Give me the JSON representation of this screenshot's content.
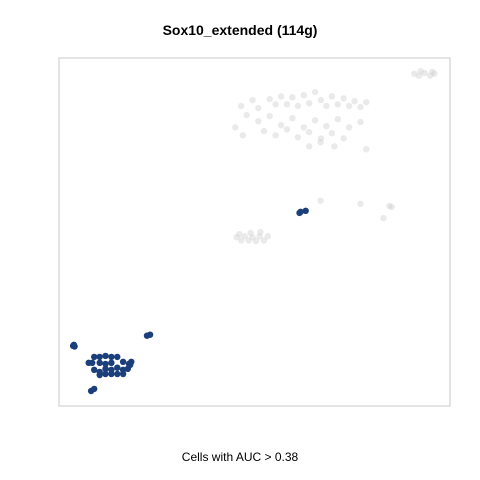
{
  "chart_data": {
    "type": "scatter",
    "title": "Sox10_extended (114g)",
    "xlabel": "Cells with AUC > 0.38",
    "ylabel": "",
    "xlim": [
      0,
      100
    ],
    "ylim": [
      0,
      100
    ],
    "grid": false,
    "axis_ticks": false,
    "colors": {
      "highlighted": "#1b3f7a",
      "background": "#d0d0d0",
      "frame": "#c8c8c8"
    },
    "series": [
      {
        "points": [
          [
            3.6,
            17.3
          ],
          [
            4.0,
            17.1
          ],
          [
            3.8,
            17.6
          ],
          [
            7.6,
            12.4
          ],
          [
            9.0,
            14.1
          ],
          [
            8.5,
            12.4
          ],
          [
            10.4,
            14.1
          ],
          [
            11.9,
            14.4
          ],
          [
            10.4,
            12.4
          ],
          [
            11.9,
            12.1
          ],
          [
            13.4,
            14.1
          ],
          [
            14.9,
            14.1
          ],
          [
            16.4,
            12.7
          ],
          [
            17.9,
            12.1
          ],
          [
            13.4,
            12.4
          ],
          [
            9.0,
            10.4
          ],
          [
            10.4,
            9.8
          ],
          [
            11.9,
            10.7
          ],
          [
            13.4,
            10.4
          ],
          [
            14.9,
            11.0
          ],
          [
            16.4,
            10.4
          ],
          [
            17.6,
            10.7
          ],
          [
            10.4,
            8.9
          ],
          [
            11.9,
            9.2
          ],
          [
            13.4,
            9.2
          ],
          [
            14.9,
            9.2
          ],
          [
            16.4,
            9.2
          ],
          [
            18.2,
            11.8
          ],
          [
            18.5,
            12.7
          ],
          [
            8.2,
            4.3
          ],
          [
            9.0,
            4.9
          ],
          [
            22.5,
            20.2
          ],
          [
            23.3,
            20.5
          ],
          [
            61.5,
            55.5
          ],
          [
            63.1,
            56.1
          ],
          [
            61.8,
            55.8
          ]
        ]
      },
      {
        "points": [
          [
            46.6,
            86.2
          ],
          [
            49.5,
            87.9
          ],
          [
            51.0,
            85.6
          ],
          [
            53.9,
            88.2
          ],
          [
            55.4,
            86.7
          ],
          [
            56.8,
            89.0
          ],
          [
            58.3,
            86.7
          ],
          [
            59.7,
            88.7
          ],
          [
            61.1,
            86.2
          ],
          [
            62.6,
            89.3
          ],
          [
            64.0,
            87.0
          ],
          [
            65.5,
            90.2
          ],
          [
            67.0,
            87.9
          ],
          [
            68.4,
            86.2
          ],
          [
            69.8,
            89.0
          ],
          [
            71.3,
            86.7
          ],
          [
            72.8,
            88.4
          ],
          [
            74.2,
            86.2
          ],
          [
            75.6,
            87.6
          ],
          [
            77.1,
            85.9
          ],
          [
            78.6,
            87.3
          ],
          [
            48.0,
            83.6
          ],
          [
            51.0,
            81.8
          ],
          [
            53.9,
            83.3
          ],
          [
            56.8,
            80.7
          ],
          [
            59.7,
            82.7
          ],
          [
            62.6,
            80.1
          ],
          [
            65.5,
            82.1
          ],
          [
            68.4,
            80.4
          ],
          [
            71.3,
            82.4
          ],
          [
            74.2,
            80.1
          ],
          [
            77.1,
            81.6
          ],
          [
            52.4,
            79.0
          ],
          [
            55.4,
            77.8
          ],
          [
            58.3,
            79.5
          ],
          [
            61.1,
            77.2
          ],
          [
            64.0,
            78.7
          ],
          [
            67.0,
            76.9
          ],
          [
            69.8,
            78.4
          ],
          [
            72.8,
            76.9
          ],
          [
            64.0,
            74.6
          ],
          [
            66.9,
            75.8
          ],
          [
            70.4,
            74.6
          ],
          [
            78.6,
            73.8
          ],
          [
            45.1,
            80.1
          ],
          [
            47.0,
            77.8
          ],
          [
            45.4,
            48.5
          ],
          [
            46.6,
            47.6
          ],
          [
            47.5,
            48.8
          ],
          [
            48.5,
            47.6
          ],
          [
            49.5,
            48.5
          ],
          [
            50.4,
            47.4
          ],
          [
            51.3,
            48.8
          ],
          [
            52.4,
            47.6
          ],
          [
            53.4,
            48.8
          ],
          [
            46.1,
            49.4
          ],
          [
            49.0,
            49.7
          ],
          [
            51.5,
            50.0
          ],
          [
            66.9,
            59.0
          ],
          [
            77.1,
            58.1
          ],
          [
            83.0,
            54.0
          ],
          [
            84.5,
            57.5
          ],
          [
            85.1,
            57.2
          ],
          [
            90.9,
            95.5
          ],
          [
            92.1,
            94.9
          ],
          [
            93.5,
            95.7
          ],
          [
            94.9,
            94.9
          ],
          [
            96.0,
            95.5
          ],
          [
            95.5,
            96.0
          ],
          [
            92.5,
            96.2
          ]
        ]
      }
    ]
  }
}
